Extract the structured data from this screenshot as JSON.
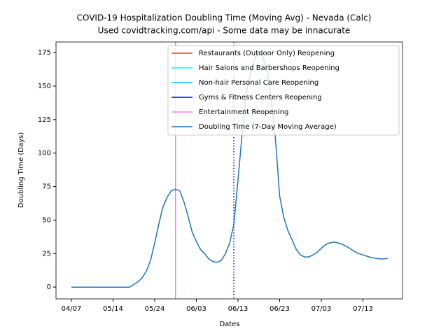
{
  "chart_data": {
    "type": "line",
    "title": "COVID-19 Hospitalization Doubling Time (Moving Avg) - Nevada (Calc)",
    "subtitle": "Used covidtracking.com/api - Some data may be innacurate",
    "x_label": "Dates",
    "y_label": "Doubling Time (Days)",
    "categories": [
      "04/07",
      null,
      null,
      null,
      null,
      null,
      null,
      null,
      null,
      null,
      "05/14",
      null,
      null,
      null,
      null,
      null,
      null,
      null,
      null,
      null,
      "05/24",
      null,
      null,
      null,
      null,
      null,
      null,
      null,
      null,
      null,
      "06/03",
      null,
      null,
      null,
      null,
      null,
      null,
      null,
      null,
      null,
      "06/13",
      null,
      null,
      null,
      null,
      null,
      null,
      null,
      null,
      null,
      "06/23",
      null,
      null,
      null,
      null,
      null,
      null,
      null,
      null,
      null,
      "07/03",
      null,
      null,
      null,
      null,
      null,
      null,
      null,
      null,
      null,
      "07/13",
      null,
      null,
      null,
      null,
      null,
      null
    ],
    "events": [
      {
        "name": "Restaurants (Outdoor Only) Reopening",
        "color": "#ff4500",
        "index": null,
        "linestyle": "solid"
      },
      {
        "name": "Hair Salons and Barbershops Reopening",
        "color": "#00ffff",
        "index": null,
        "linestyle": "solid"
      },
      {
        "name": "Non-hair Personal Care Reopening",
        "color": "#00bfff",
        "index": null,
        "linestyle": "solid"
      },
      {
        "name": "Gyms & Fitness Centers Reopening",
        "color": "#0000ff",
        "index": 39,
        "linestyle": "dotted"
      },
      {
        "name": "Entertainment Reopening",
        "color": "#ee82ee",
        "index": 25,
        "linestyle": "solid"
      }
    ],
    "series": [
      {
        "name": "Doubling Time (7-Day Moving Average)",
        "color": "#1f77b4",
        "values": [
          0,
          0,
          0,
          0,
          0,
          0,
          0,
          0,
          0,
          0,
          0,
          0,
          0,
          0,
          0,
          2,
          4,
          7,
          12,
          20,
          33,
          47,
          60,
          67,
          72,
          73,
          72,
          64,
          53,
          41,
          34,
          28,
          25,
          21,
          19,
          18.5,
          20,
          25,
          33,
          47,
          80,
          115,
          145,
          160,
          170,
          176,
          172,
          160,
          140,
          110,
          68,
          52,
          42,
          35,
          28,
          24,
          22.5,
          22.5,
          24,
          26,
          29,
          31.5,
          33,
          33.5,
          33,
          32,
          30.5,
          28.5,
          26.5,
          25,
          24,
          23,
          22,
          21.5,
          21,
          21,
          21.5
        ]
      }
    ],
    "ylim": [
      -8.8,
      182.9
    ],
    "yticks": [
      0,
      25,
      50,
      75,
      100,
      125,
      150,
      175
    ],
    "legend": "upper right"
  }
}
